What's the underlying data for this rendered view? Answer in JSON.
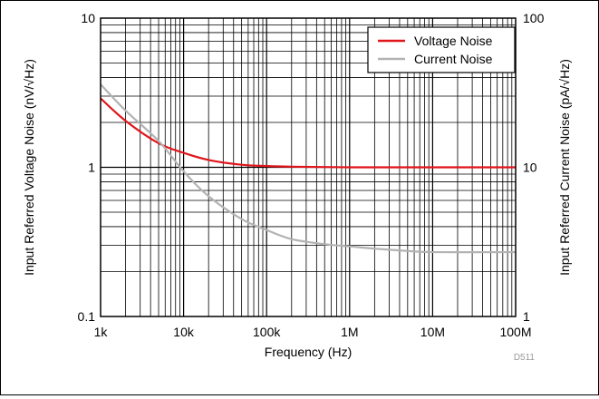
{
  "chart_data": {
    "type": "line",
    "xlabel": "Frequency (Hz)",
    "ylabel_left": "Input Referred Voltage Noise (nV/√Hz)",
    "ylabel_right": "Input Referred Current Noise (pA/√Hz)",
    "x_scale": "log",
    "y_scale": "log",
    "xlim": [
      1000,
      100000000
    ],
    "ylim_left": [
      0.1,
      10
    ],
    "ylim_right": [
      1,
      100
    ],
    "grid": true,
    "legend_position": "top-right",
    "x_ticks": [
      {
        "value": 1000,
        "label": "1k"
      },
      {
        "value": 10000,
        "label": "10k"
      },
      {
        "value": 100000,
        "label": "100k"
      },
      {
        "value": 1000000,
        "label": "1M"
      },
      {
        "value": 10000000,
        "label": "10M"
      },
      {
        "value": 100000000,
        "label": "100M"
      }
    ],
    "y_ticks_left": [
      {
        "value": 0.1,
        "label": "0.1"
      },
      {
        "value": 1,
        "label": "1"
      },
      {
        "value": 10,
        "label": "10"
      }
    ],
    "y_ticks_right": [
      {
        "value": 1,
        "label": "1"
      },
      {
        "value": 10,
        "label": "10"
      },
      {
        "value": 100,
        "label": "100"
      }
    ],
    "series": [
      {
        "name": "Voltage Noise",
        "axis": "left",
        "color": "#e0161b",
        "x": [
          1000,
          2000,
          5000,
          10000,
          20000,
          50000,
          100000,
          200000,
          1000000,
          10000000,
          100000000
        ],
        "y": [
          2.9,
          2.05,
          1.45,
          1.25,
          1.12,
          1.04,
          1.02,
          1.01,
          1.0,
          1.0,
          1.0
        ]
      },
      {
        "name": "Current Noise",
        "axis": "right",
        "color": "#b3b3b3",
        "x": [
          1000,
          2000,
          5000,
          10000,
          20000,
          50000,
          100000,
          200000,
          500000,
          1000000,
          2000000,
          5000000,
          10000000,
          100000000
        ],
        "y": [
          36,
          24,
          15,
          9.4,
          6.4,
          4.5,
          3.8,
          3.3,
          3.05,
          2.95,
          2.85,
          2.75,
          2.7,
          2.7
        ]
      }
    ],
    "annotations": [
      "D511"
    ]
  }
}
